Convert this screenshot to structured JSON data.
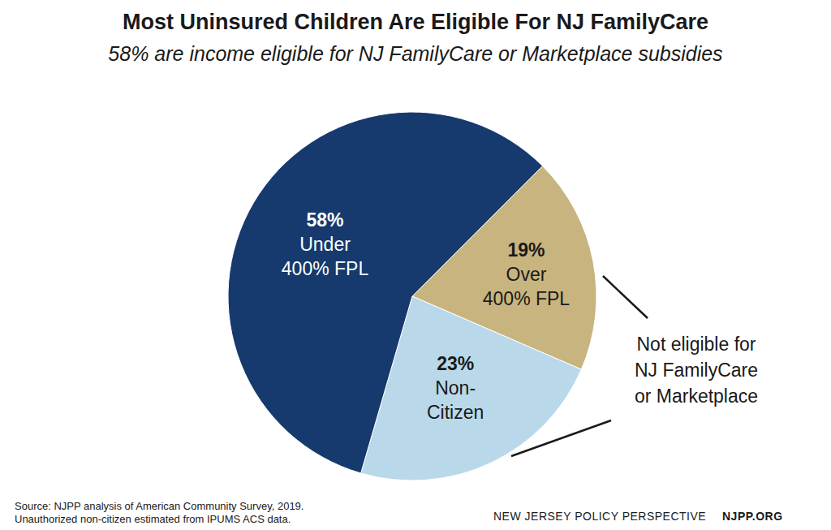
{
  "chart_data": {
    "type": "pie",
    "title": "Most Uninsured Children Are Eligible For NJ FamilyCare",
    "subtitle": "58% are income eligible for NJ FamilyCare or Marketplace subsidies",
    "categories": [
      "Over 400% FPL",
      "Non-Citizen",
      "Under 400% FPL"
    ],
    "values": [
      19,
      23,
      58
    ],
    "value_labels": [
      "19%",
      "23%",
      "58%"
    ],
    "colors": [
      "#c8b47f",
      "#b9d8ea",
      "#163a6e"
    ],
    "data_labels": true,
    "annotation": [
      "Not eligible for",
      "NJ FamilyCare",
      "or Marketplace"
    ],
    "source": [
      "Source: NJPP analysis of American Community Survey, 2019.",
      "Unauthorized non-citizen estimated from IPUMS ACS data."
    ],
    "footer": [
      "NEW JERSEY POLICY PERSPECTIVE",
      "NJPP.ORG"
    ]
  }
}
